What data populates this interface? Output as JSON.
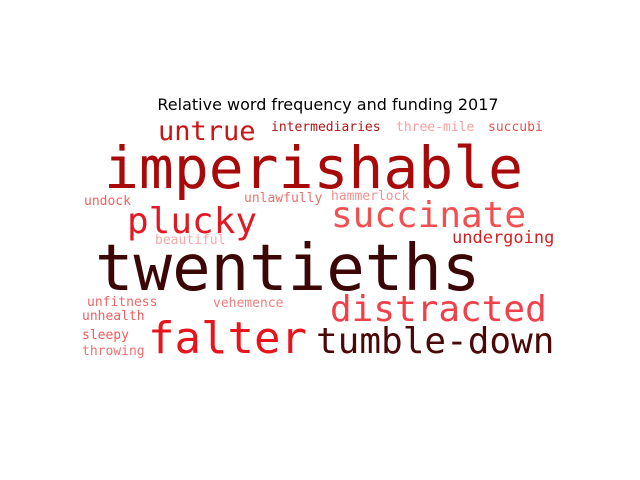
{
  "chart_data": {
    "type": "wordcloud",
    "title": "Relative word frequency and funding 2017",
    "words": [
      {
        "text": "twentieths",
        "weight": 1.0,
        "color": "#3d0606"
      },
      {
        "text": "imperishable",
        "weight": 0.78,
        "color": "#a80a0a"
      },
      {
        "text": "falter",
        "weight": 0.62,
        "color": "#e8141c"
      },
      {
        "text": "tumble-down",
        "weight": 0.57,
        "color": "#4a0808"
      },
      {
        "text": "distracted",
        "weight": 0.54,
        "color": "#f0404a"
      },
      {
        "text": "succinate",
        "weight": 0.54,
        "color": "#f25050"
      },
      {
        "text": "plucky",
        "weight": 0.54,
        "color": "#e01a22"
      },
      {
        "text": "untrue",
        "weight": 0.42,
        "color": "#c81515"
      },
      {
        "text": "undergoing",
        "weight": 0.28,
        "color": "#d42020"
      },
      {
        "text": "intermediaries",
        "weight": 0.22,
        "color": "#b01818"
      },
      {
        "text": "three-mile",
        "weight": 0.22,
        "color": "#f8a0a0"
      },
      {
        "text": "succubi",
        "weight": 0.22,
        "color": "#e85050"
      },
      {
        "text": "unlawfully",
        "weight": 0.22,
        "color": "#f07070"
      },
      {
        "text": "hammerlock",
        "weight": 0.2,
        "color": "#f49090"
      },
      {
        "text": "undock",
        "weight": 0.2,
        "color": "#f06060"
      },
      {
        "text": "beautiful",
        "weight": 0.2,
        "color": "#f7a8a8"
      },
      {
        "text": "unfitness",
        "weight": 0.22,
        "color": "#f06565"
      },
      {
        "text": "unhealth",
        "weight": 0.22,
        "color": "#f26060"
      },
      {
        "text": "vehemence",
        "weight": 0.2,
        "color": "#f28080"
      },
      {
        "text": "sleepy",
        "weight": 0.22,
        "color": "#f05a5a"
      },
      {
        "text": "throwing",
        "weight": 0.22,
        "color": "#f07070"
      }
    ]
  }
}
